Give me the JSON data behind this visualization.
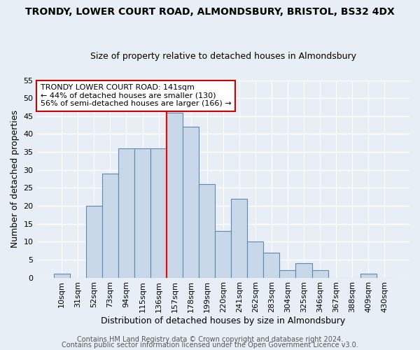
{
  "title1": "TRONDY, LOWER COURT ROAD, ALMONDSBURY, BRISTOL, BS32 4DX",
  "title2": "Size of property relative to detached houses in Almondsbury",
  "xlabel": "Distribution of detached houses by size in Almondsbury",
  "ylabel": "Number of detached properties",
  "categories": [
    "10sqm",
    "31sqm",
    "52sqm",
    "73sqm",
    "94sqm",
    "115sqm",
    "136sqm",
    "157sqm",
    "178sqm",
    "199sqm",
    "220sqm",
    "241sqm",
    "262sqm",
    "283sqm",
    "304sqm",
    "325sqm",
    "346sqm",
    "367sqm",
    "388sqm",
    "409sqm",
    "430sqm"
  ],
  "values": [
    1,
    0,
    20,
    29,
    36,
    36,
    36,
    46,
    42,
    26,
    13,
    22,
    10,
    7,
    2,
    4,
    2,
    0,
    0,
    1,
    0
  ],
  "bar_color": "#c8d8e8",
  "bar_edge_color": "#5a8ab0",
  "red_line_index": 6.5,
  "annotation_line1": "TRONDY LOWER COURT ROAD: 141sqm",
  "annotation_line2": "← 44% of detached houses are smaller (130)",
  "annotation_line3": "56% of semi-detached houses are larger (166) →",
  "annotation_box_color": "#ffffff",
  "annotation_box_edge": "#cc0000",
  "ylim": [
    0,
    55
  ],
  "yticks": [
    0,
    5,
    10,
    15,
    20,
    25,
    30,
    35,
    40,
    45,
    50,
    55
  ],
  "footer1": "Contains HM Land Registry data © Crown copyright and database right 2024.",
  "footer2": "Contains public sector information licensed under the Open Government Licence v3.0.",
  "bg_color": "#e8eef5",
  "plot_bg_color": "#e8eef5",
  "title1_fontsize": 10,
  "title2_fontsize": 9,
  "ylabel_fontsize": 9,
  "xlabel_fontsize": 9,
  "tick_fontsize": 8,
  "footer_fontsize": 7
}
